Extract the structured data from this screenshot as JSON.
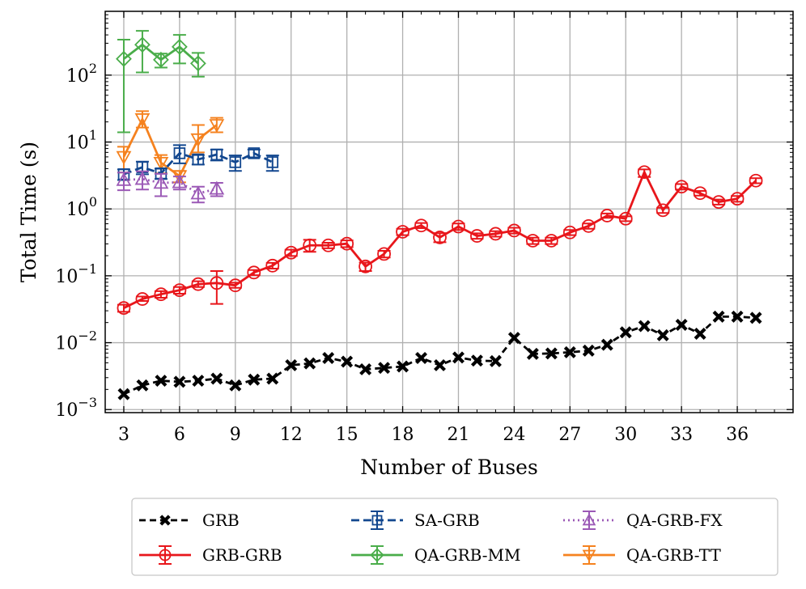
{
  "chart_data": {
    "type": "line",
    "title": "",
    "xlabel": "Number of Buses",
    "ylabel": "Total Time (s)",
    "xlim": [
      2,
      39
    ],
    "ylim": [
      0.0009,
      900
    ],
    "yscale": "log",
    "grid": true,
    "legend_position": "bottom-center, below plot",
    "x_ticks": [
      3,
      6,
      9,
      12,
      15,
      18,
      21,
      24,
      27,
      30,
      33,
      36
    ],
    "y_ticks": [
      {
        "value": 0.001,
        "base": "10",
        "exp": "−3"
      },
      {
        "value": 0.01,
        "base": "10",
        "exp": "−2"
      },
      {
        "value": 0.1,
        "base": "10",
        "exp": "−1"
      },
      {
        "value": 1,
        "base": "10",
        "exp": "0"
      },
      {
        "value": 10,
        "base": "10",
        "exp": "1"
      },
      {
        "value": 100,
        "base": "10",
        "exp": "2"
      }
    ],
    "series": [
      {
        "name": "GRB",
        "color": "#000000",
        "dash": "8,5",
        "marker": "x",
        "x": [
          3,
          4,
          5,
          6,
          7,
          8,
          9,
          10,
          11,
          12,
          13,
          14,
          15,
          16,
          17,
          18,
          19,
          20,
          21,
          22,
          23,
          24,
          25,
          26,
          27,
          28,
          29,
          30,
          31,
          32,
          33,
          34,
          35,
          36,
          37
        ],
        "y": [
          0.0017,
          0.0023,
          0.0027,
          0.0026,
          0.0027,
          0.0029,
          0.0023,
          0.0028,
          0.0029,
          0.0046,
          0.0049,
          0.0059,
          0.0052,
          0.004,
          0.0042,
          0.0044,
          0.0059,
          0.0046,
          0.006,
          0.0054,
          0.0053,
          0.0118,
          0.0068,
          0.0069,
          0.0072,
          0.0076,
          0.0093,
          0.0143,
          0.0177,
          0.0129,
          0.0185,
          0.0136,
          0.0245,
          0.0245,
          0.0235
        ],
        "err_low": [],
        "err_high": []
      },
      {
        "name": "GRB-GRB",
        "color": "#e8161b",
        "dash": "",
        "marker": "circle",
        "x": [
          3,
          4,
          5,
          6,
          7,
          8,
          9,
          10,
          11,
          12,
          13,
          14,
          15,
          16,
          17,
          18,
          19,
          20,
          21,
          22,
          23,
          24,
          25,
          26,
          27,
          28,
          29,
          30,
          31,
          32,
          33,
          34,
          35,
          36,
          37
        ],
        "y": [
          0.033,
          0.045,
          0.053,
          0.061,
          0.075,
          0.078,
          0.072,
          0.112,
          0.142,
          0.222,
          0.285,
          0.285,
          0.302,
          0.138,
          0.212,
          0.455,
          0.565,
          0.375,
          0.545,
          0.395,
          0.425,
          0.475,
          0.335,
          0.335,
          0.445,
          0.555,
          0.795,
          0.715,
          3.55,
          0.955,
          2.15,
          1.72,
          1.27,
          1.42,
          2.65
        ],
        "err_low": [
          0.029,
          0.042,
          0.047,
          0.054,
          0.068,
          0.038,
          0.066,
          0.102,
          0.128,
          0.198,
          0.228,
          0.258,
          0.268,
          0.118,
          0.188,
          0.405,
          0.515,
          0.318,
          0.485,
          0.358,
          0.385,
          0.428,
          0.298,
          0.298,
          0.405,
          0.505,
          0.735,
          0.655,
          3.0,
          0.87,
          1.95,
          1.58,
          1.16,
          1.28,
          2.42
        ],
        "err_high": [
          0.037,
          0.049,
          0.059,
          0.068,
          0.083,
          0.118,
          0.079,
          0.122,
          0.156,
          0.246,
          0.345,
          0.312,
          0.338,
          0.158,
          0.236,
          0.505,
          0.615,
          0.435,
          0.605,
          0.432,
          0.465,
          0.522,
          0.372,
          0.372,
          0.485,
          0.605,
          0.855,
          0.775,
          3.9,
          1.04,
          2.35,
          1.86,
          1.38,
          1.56,
          2.88
        ]
      },
      {
        "name": "SA-GRB",
        "color": "#12478f",
        "dash": "10,5",
        "marker": "square",
        "x": [
          3,
          4,
          5,
          6,
          7,
          8,
          9,
          10,
          11
        ],
        "y": [
          3.3,
          4.2,
          3.4,
          6.8,
          5.5,
          6.5,
          5.0,
          6.8,
          5.0
        ],
        "err_low": [
          2.7,
          3.3,
          2.8,
          4.8,
          4.6,
          5.3,
          3.7,
          5.9,
          3.7
        ],
        "err_high": [
          3.9,
          5.1,
          4.0,
          9.0,
          6.4,
          7.7,
          6.3,
          7.7,
          6.3
        ]
      },
      {
        "name": "GRB-GRB",
        "color": "#e8161b",
        "dash": "",
        "marker": "circle",
        "x": [],
        "y": [],
        "err_low": [],
        "err_high": []
      },
      {
        "name": "QA-GRB-FX",
        "color": "#9b59b6",
        "dash": "2,4",
        "marker": "triangle-up",
        "x": [
          3,
          4,
          5,
          6,
          7,
          8
        ],
        "y": [
          2.7,
          2.8,
          2.45,
          2.5,
          1.7,
          2.0
        ],
        "err_low": [
          1.9,
          1.95,
          1.55,
          1.95,
          1.25,
          1.55
        ],
        "err_high": [
          3.5,
          3.65,
          3.35,
          3.05,
          2.15,
          2.45
        ]
      },
      {
        "name": "QA-GRB-MM",
        "color": "#4aad4a",
        "dash": "",
        "marker": "diamond",
        "x": [
          3,
          4,
          5,
          6,
          7
        ],
        "y": [
          175,
          285,
          170,
          265,
          150
        ],
        "err_low": [
          14,
          110,
          130,
          150,
          95
        ],
        "err_high": [
          340,
          460,
          210,
          400,
          215
        ]
      },
      {
        "name": "QA-GRB-TT",
        "color": "#f5821f",
        "dash": "",
        "marker": "triangle-down",
        "x": [
          3,
          4,
          5,
          6,
          7,
          8
        ],
        "y": [
          6.0,
          22.0,
          4.9,
          3.1,
          11.0,
          18.0
        ],
        "err_low": [
          3.5,
          16.5,
          3.4,
          2.5,
          7.0,
          14.0
        ],
        "err_high": [
          8.5,
          29.0,
          6.4,
          3.7,
          18.0,
          23.0
        ]
      }
    ],
    "legend_entries": [
      "GRB",
      "SA-GRB",
      "QA-GRB-FX",
      "GRB-GRB",
      "QA-GRB-MM",
      "QA-GRB-TT"
    ]
  }
}
